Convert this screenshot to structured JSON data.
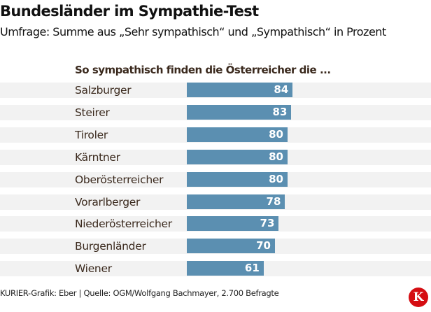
{
  "header": {
    "title": "Bundesländer im Sympathie-Test",
    "subtitle": "Umfrage: Summe aus „Sehr sympathisch“ und „Sympathisch“ in Prozent"
  },
  "chart_data": {
    "type": "bar",
    "orientation": "horizontal",
    "title": "So sympathisch finden die Österreicher die ...",
    "categories": [
      "Salzburger",
      "Steirer",
      "Tiroler",
      "Kärntner",
      "Oberösterreicher",
      "Vorarlberger",
      "Niederösterreicher",
      "Burgenländer",
      "Wiener"
    ],
    "values": [
      84,
      83,
      80,
      80,
      80,
      78,
      73,
      70,
      61
    ],
    "unit": "%",
    "xlabel": "",
    "ylabel": "",
    "xlim": [
      0,
      100
    ],
    "grid": false,
    "legend": "none",
    "bar_color": "#5b8fb1",
    "row_band_color": "#f2f2f2"
  },
  "footer": {
    "credit": "KURIER-Grafik: Eber | Quelle: OGM/Wolfgang Bachmayer, 2.700 Befragte",
    "logo_letter": "K",
    "logo_color": "#d50d12"
  }
}
